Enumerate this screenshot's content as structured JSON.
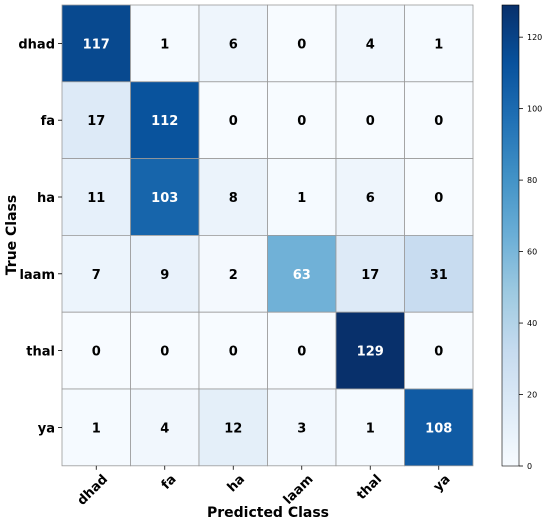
{
  "chart_data": {
    "type": "heatmap",
    "xlabel": "Predicted Class",
    "ylabel": "True Class",
    "x_categories": [
      "dhad",
      "fa",
      "ha",
      "laam",
      "thal",
      "ya"
    ],
    "y_categories": [
      "dhad",
      "fa",
      "ha",
      "laam",
      "thal",
      "ya"
    ],
    "values": [
      [
        117,
        1,
        6,
        0,
        4,
        1
      ],
      [
        17,
        112,
        0,
        0,
        0,
        0
      ],
      [
        11,
        103,
        8,
        1,
        6,
        0
      ],
      [
        7,
        9,
        2,
        63,
        17,
        31
      ],
      [
        0,
        0,
        0,
        0,
        129,
        0
      ],
      [
        1,
        4,
        12,
        3,
        1,
        108
      ]
    ],
    "colorbar": {
      "min": 0,
      "max": 129,
      "ticks": [
        0,
        20,
        40,
        60,
        80,
        100,
        120
      ],
      "colormap": "Blues",
      "low_color": "#f7fbff",
      "high_color": "#08306b"
    },
    "grid": true
  }
}
